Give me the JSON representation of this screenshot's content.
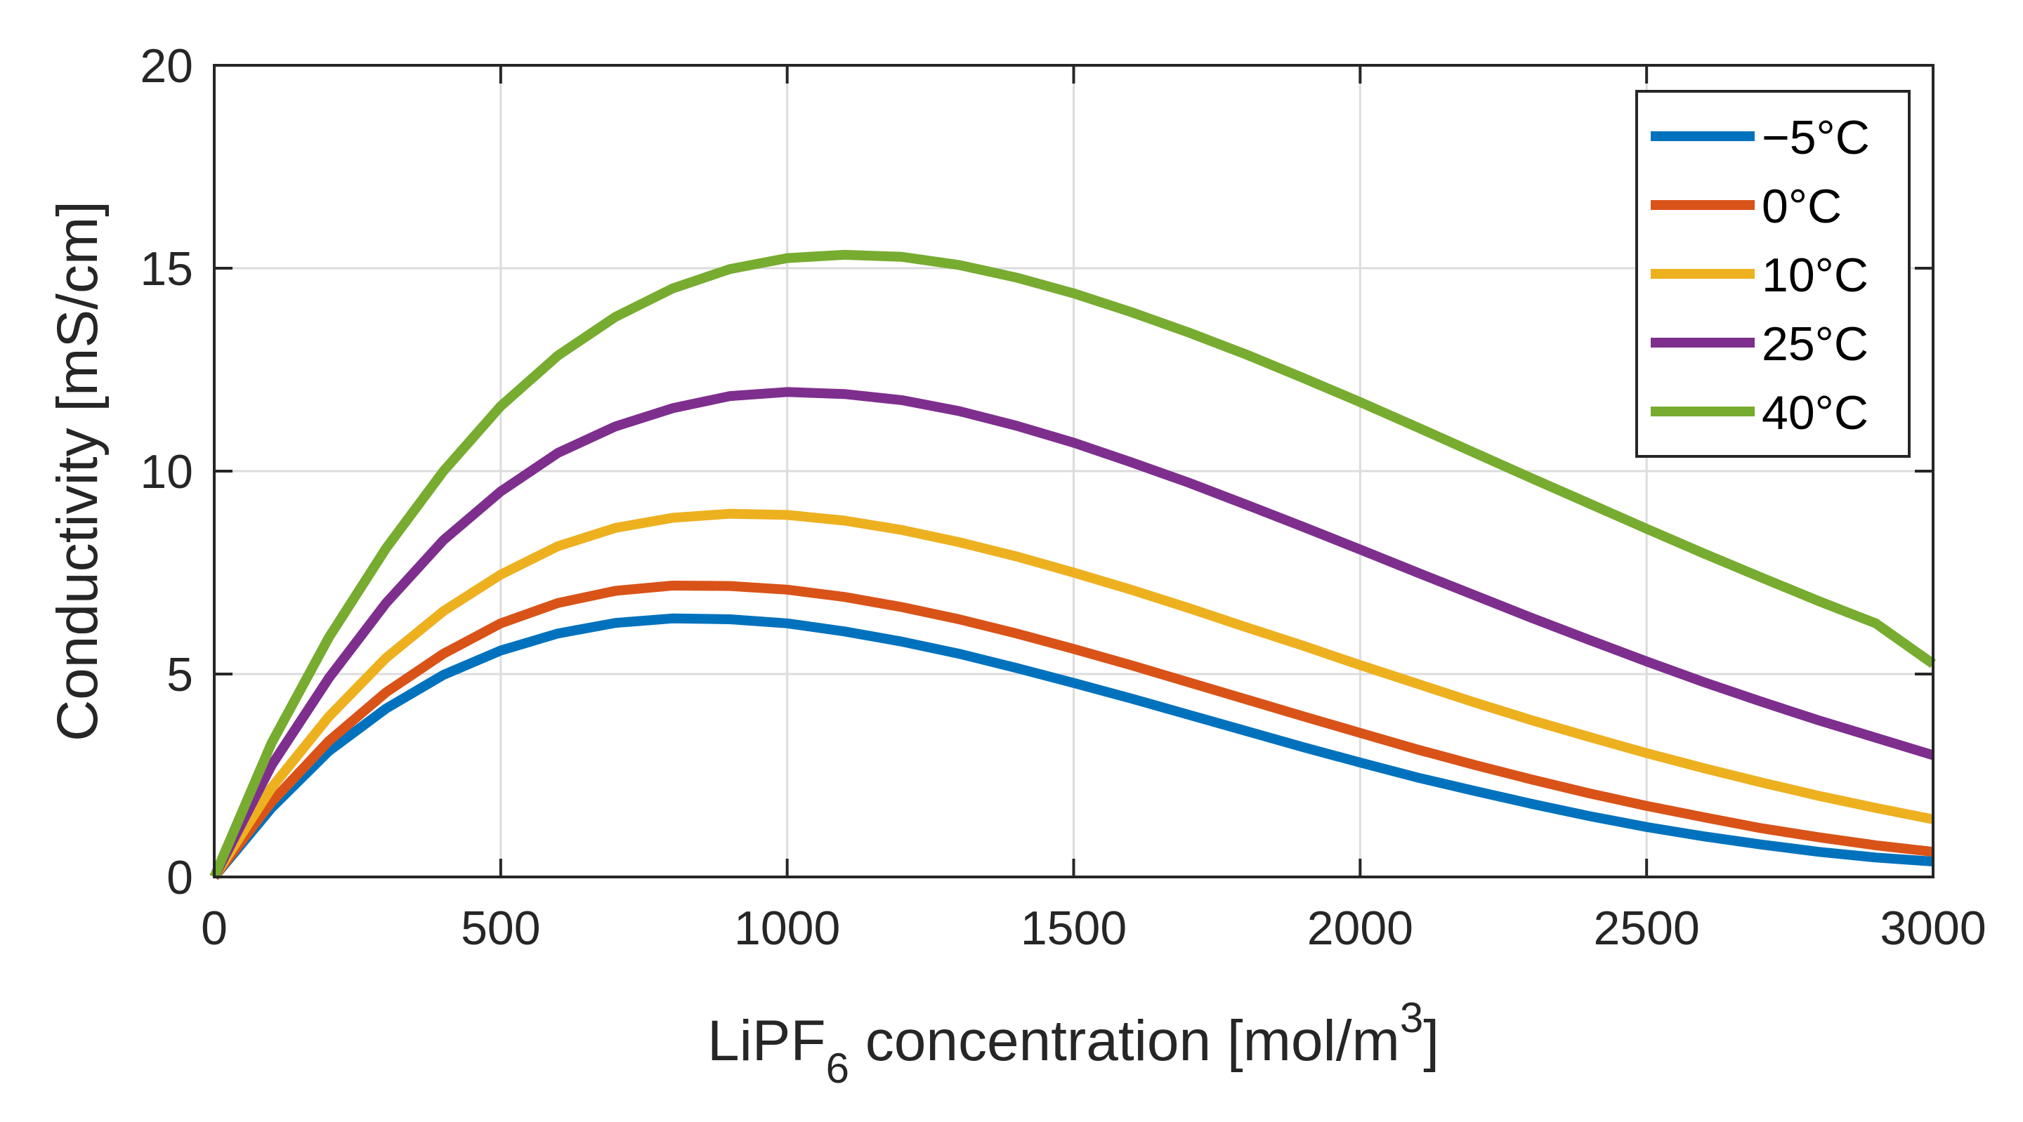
{
  "chart_data": {
    "type": "line",
    "title": "",
    "xlabel": {
      "main": "LiPF",
      "subscript": "6",
      "rest": " concentration [mol/m",
      "superscript": "3",
      "close": "]"
    },
    "ylabel": "Conductivity [mS/cm]",
    "xlim": [
      0,
      3000
    ],
    "ylim": [
      0,
      20
    ],
    "xticks": [
      0,
      500,
      1000,
      1500,
      2000,
      2500,
      3000
    ],
    "yticks": [
      0,
      5,
      10,
      15,
      20
    ],
    "grid": true,
    "legend_position": "top-right",
    "x": [
      0,
      100,
      200,
      300,
      400,
      500,
      600,
      700,
      800,
      900,
      1000,
      1100,
      1200,
      1300,
      1400,
      1500,
      1600,
      1700,
      1800,
      1900,
      2000,
      2100,
      2200,
      2300,
      2400,
      2500,
      2600,
      2700,
      2800,
      2900,
      3000
    ],
    "series": [
      {
        "name": "−5°C",
        "color": "#0072BD",
        "values": [
          0,
          1.7,
          3.1,
          4.15,
          4.98,
          5.58,
          6.0,
          6.26,
          6.37,
          6.35,
          6.25,
          6.05,
          5.8,
          5.5,
          5.15,
          4.78,
          4.4,
          4.0,
          3.6,
          3.2,
          2.82,
          2.45,
          2.12,
          1.8,
          1.5,
          1.23,
          1.0,
          0.8,
          0.62,
          0.48,
          0.38
        ]
      },
      {
        "name": "0°C",
        "color": "#D95319",
        "values": [
          0,
          1.85,
          3.35,
          4.55,
          5.5,
          6.25,
          6.75,
          7.05,
          7.18,
          7.17,
          7.08,
          6.9,
          6.65,
          6.35,
          6.0,
          5.62,
          5.22,
          4.8,
          4.38,
          3.96,
          3.55,
          3.14,
          2.76,
          2.4,
          2.06,
          1.75,
          1.47,
          1.2,
          0.98,
          0.78,
          0.62
        ]
      },
      {
        "name": "10°C",
        "color": "#EDB120",
        "values": [
          0,
          2.2,
          3.95,
          5.4,
          6.55,
          7.45,
          8.15,
          8.6,
          8.85,
          8.95,
          8.92,
          8.78,
          8.55,
          8.25,
          7.9,
          7.5,
          7.08,
          6.63,
          6.16,
          5.7,
          5.22,
          4.76,
          4.3,
          3.86,
          3.45,
          3.05,
          2.68,
          2.33,
          2.0,
          1.7,
          1.42
        ]
      },
      {
        "name": "25°C",
        "color": "#7E2F8E",
        "values": [
          0,
          2.75,
          4.9,
          6.75,
          8.3,
          9.5,
          10.45,
          11.1,
          11.55,
          11.85,
          11.95,
          11.9,
          11.75,
          11.48,
          11.12,
          10.7,
          10.22,
          9.72,
          9.18,
          8.63,
          8.07,
          7.5,
          6.94,
          6.38,
          5.84,
          5.31,
          4.8,
          4.32,
          3.86,
          3.43,
          3.0
        ]
      },
      {
        "name": "40°C",
        "color": "#77AC30",
        "values": [
          0,
          3.3,
          5.9,
          8.1,
          10.0,
          11.6,
          12.85,
          13.8,
          14.5,
          14.98,
          15.25,
          15.33,
          15.28,
          15.08,
          14.77,
          14.38,
          13.92,
          13.42,
          12.88,
          12.3,
          11.7,
          11.08,
          10.45,
          9.82,
          9.2,
          8.58,
          7.97,
          7.38,
          6.8,
          6.25,
          5.25
        ]
      }
    ]
  }
}
